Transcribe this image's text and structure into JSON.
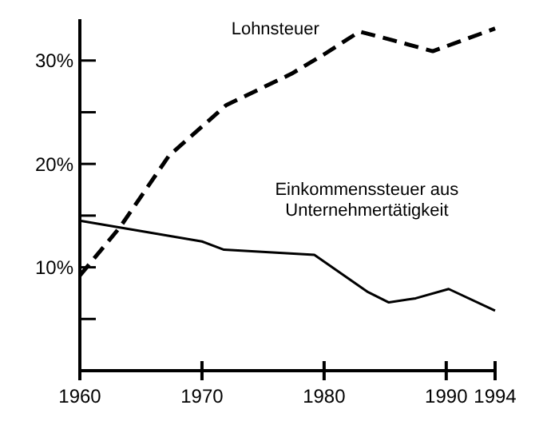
{
  "chart_data": {
    "type": "line",
    "xlim": [
      1960,
      1994
    ],
    "xticks": [
      1960,
      1970,
      1980,
      1990,
      1994
    ],
    "ylim": [
      0,
      34
    ],
    "yticks": [
      {
        "value": 5,
        "label": null
      },
      {
        "value": 10,
        "label": "10%"
      },
      {
        "value": 15,
        "label": null
      },
      {
        "value": 20,
        "label": "20%"
      },
      {
        "value": 25,
        "label": null
      },
      {
        "value": 30,
        "label": "30%"
      }
    ],
    "grid": false,
    "series": [
      {
        "name": "Lohnsteuer",
        "color": "#000000",
        "line_style": "dashed",
        "x": [
          1960,
          1963.3,
          1967.3,
          1972,
          1977.3,
          1980,
          1982.9,
          1985.8,
          1988.9,
          1994
        ],
        "values": [
          9.2,
          13.9,
          20.8,
          25.7,
          28.7,
          30.6,
          32.8,
          31.9,
          30.9,
          33.1
        ]
      },
      {
        "name": "Einkommenssteuer aus Unternehmertätigkeit",
        "color": "#000000",
        "line_style": "solid",
        "x": [
          1960,
          1970,
          1971.8,
          1979.2,
          1983.6,
          1985.3,
          1987.5,
          1990.2,
          1994
        ],
        "values": [
          14.5,
          12.5,
          11.7,
          11.2,
          7.6,
          6.6,
          7.0,
          7.9,
          5.8
        ]
      }
    ]
  }
}
